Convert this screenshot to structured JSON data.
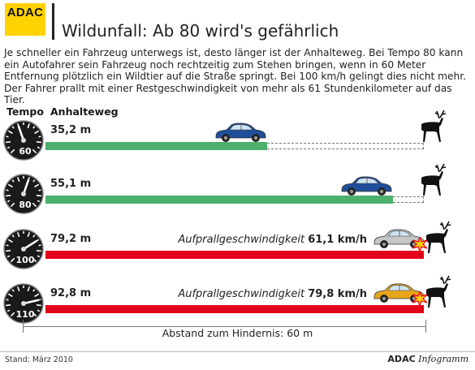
{
  "header": {
    "logo_text": "ADAC",
    "title": "Wildunfall: Ab 80 wird's gefährlich"
  },
  "intro": "Je schneller ein Fahrzeug unterwegs ist, desto länger ist der Anhalteweg. Bei Tempo 80 kann ein Autofahrer sein Fahrzeug noch rechtzeitig zum Stehen bringen, wenn in 60 Meter Entfernung plötzlich ein Wildtier auf die Straße springt. Bei 100 km/h gelingt dies nicht mehr. Der Fahrer prallt mit einer Restgeschwindigkeit von mehr als 61 Stundenkilometer auf das Tier.",
  "columns": {
    "tempo": "Tempo",
    "anhalteweg": "Anhalteweg"
  },
  "rows": [
    {
      "speed": "60",
      "speed_kmh": 60,
      "distance": "35,2 m",
      "distance_m": 35.2,
      "collision": false,
      "car_color": "#1f4f9a"
    },
    {
      "speed": "80",
      "speed_kmh": 80,
      "distance": "55,1 m",
      "distance_m": 55.1,
      "collision": false,
      "car_color": "#1f4f9a"
    },
    {
      "speed": "100",
      "speed_kmh": 100,
      "distance": "79,2 m",
      "distance_m": 79.2,
      "collision": true,
      "car_color": "#c4c6c8",
      "impact_label": "Aufprallgeschwindigkeit",
      "impact_value": "61,1 km/h"
    },
    {
      "speed": "110",
      "speed_kmh": 110,
      "distance": "92,8 m",
      "distance_m": 92.8,
      "collision": true,
      "car_color": "#e8a51c",
      "impact_label": "Aufprallgeschwindigkeit",
      "impact_value": "79,8 km/h"
    }
  ],
  "obstacle_distance_m": 60,
  "axis_label": "Abstand zum Hindernis: 60 m",
  "footer": {
    "stand": "Stand: März 2010",
    "brand_bold": "ADAC",
    "brand_italic": "Infogramm"
  },
  "colors": {
    "green": "#4daf6c",
    "red": "#e3001b",
    "logo_yellow": "#ffd200"
  }
}
